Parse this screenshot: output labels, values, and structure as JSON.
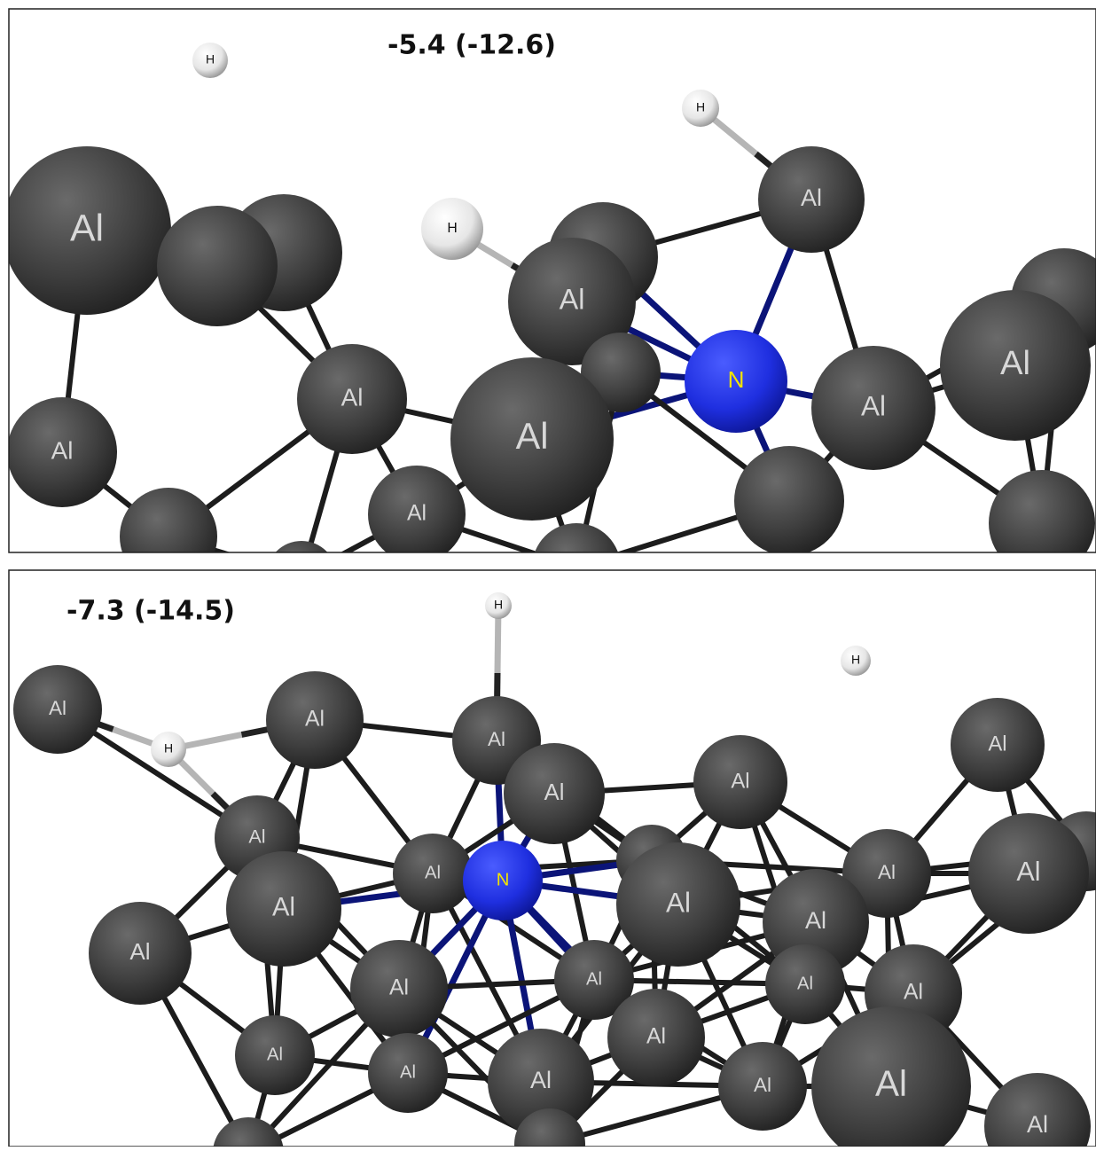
{
  "panels": [
    {
      "energy": "-5.4 (-12.6)",
      "atoms": [
        "Al",
        "H",
        "H",
        "H",
        "Al",
        "Al",
        "N",
        "Al",
        "Al",
        "Al",
        "Al",
        "Al",
        "Al"
      ]
    },
    {
      "energy": "-7.3 (-14.5)",
      "atoms": [
        "H",
        "H",
        "H",
        "Al",
        "Al",
        "Al",
        "Al",
        "Al",
        "Al",
        "Al",
        "Al",
        "N",
        "Al",
        "Al",
        "Al",
        "Al",
        "Al",
        "Al",
        "Al",
        "Al",
        "Al",
        "Al",
        "Al",
        "Al",
        "Al",
        "Al",
        "Al",
        "Al",
        "Al"
      ]
    }
  ]
}
